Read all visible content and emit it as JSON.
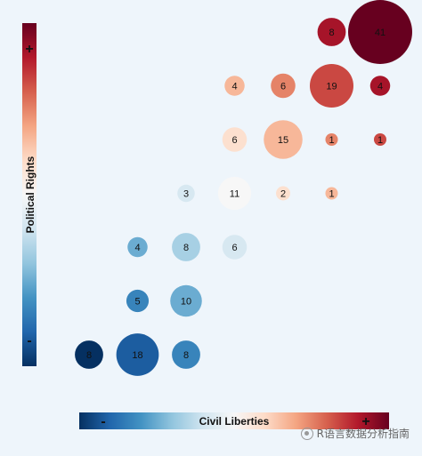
{
  "chart_data": {
    "type": "scatter",
    "xlabel": "Civil Liberties",
    "ylabel": "Political Rights",
    "x_low_label": "-",
    "x_high_label": "+",
    "y_low_label": "-",
    "y_high_label": "+",
    "xlim": [
      1,
      7
    ],
    "ylim": [
      1,
      7
    ],
    "grid": false,
    "color_scale": [
      "#053061",
      "#2166ac",
      "#4393c3",
      "#92c5de",
      "#d1e5f0",
      "#f7f7f7",
      "#fddbc7",
      "#f4a582",
      "#d6604d",
      "#b2182b",
      "#67001f"
    ],
    "points": [
      {
        "x": 1,
        "y": 1,
        "value": 8
      },
      {
        "x": 2,
        "y": 1,
        "value": 18
      },
      {
        "x": 3,
        "y": 1,
        "value": 8
      },
      {
        "x": 2,
        "y": 2,
        "value": 5
      },
      {
        "x": 3,
        "y": 2,
        "value": 10
      },
      {
        "x": 2,
        "y": 3,
        "value": 4
      },
      {
        "x": 3,
        "y": 3,
        "value": 8
      },
      {
        "x": 4,
        "y": 3,
        "value": 6
      },
      {
        "x": 3,
        "y": 4,
        "value": 3
      },
      {
        "x": 4,
        "y": 4,
        "value": 11
      },
      {
        "x": 5,
        "y": 4,
        "value": 2
      },
      {
        "x": 6,
        "y": 4,
        "value": 1
      },
      {
        "x": 4,
        "y": 5,
        "value": 6
      },
      {
        "x": 5,
        "y": 5,
        "value": 15
      },
      {
        "x": 6,
        "y": 5,
        "value": 1
      },
      {
        "x": 7,
        "y": 5,
        "value": 1
      },
      {
        "x": 4,
        "y": 6,
        "value": 4
      },
      {
        "x": 5,
        "y": 6,
        "value": 6
      },
      {
        "x": 6,
        "y": 6,
        "value": 19
      },
      {
        "x": 7,
        "y": 6,
        "value": 4
      },
      {
        "x": 6,
        "y": 7,
        "value": 8
      },
      {
        "x": 7,
        "y": 7,
        "value": 41
      }
    ]
  },
  "watermark": {
    "text": "R语言数据分析指南",
    "icon": "wechat-icon"
  }
}
